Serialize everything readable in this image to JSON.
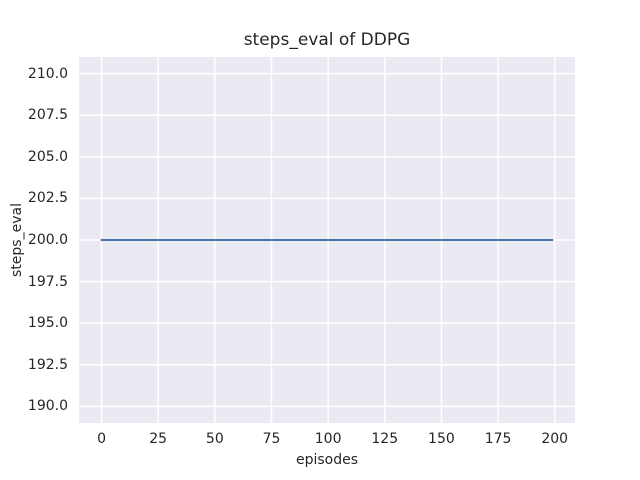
{
  "chart_data": {
    "type": "line",
    "title": "steps_eval of DDPG",
    "xlabel": "episodes",
    "ylabel": "steps_eval",
    "xlim": [
      -9.95,
      208.95
    ],
    "ylim": [
      189,
      211
    ],
    "xtick_values": [
      0,
      25,
      50,
      75,
      100,
      125,
      150,
      175,
      200
    ],
    "xtick_labels": [
      "0",
      "25",
      "50",
      "75",
      "100",
      "125",
      "150",
      "175",
      "200"
    ],
    "ytick_values": [
      190.0,
      192.5,
      195.0,
      197.5,
      200.0,
      202.5,
      205.0,
      207.5,
      210.0
    ],
    "ytick_labels": [
      "190.0",
      "192.5",
      "195.0",
      "197.5",
      "200.0",
      "202.5",
      "205.0",
      "207.5",
      "210.0"
    ],
    "grid": true,
    "legend": false,
    "series": [
      {
        "name": "steps_eval",
        "x": [
          0,
          199
        ],
        "y": [
          200,
          200
        ],
        "color": "#4C72B0"
      }
    ],
    "colors": {
      "figure_bg": "#FFFFFF",
      "plot_bg": "#EAEAF2",
      "grid": "#FFFFFF",
      "text": "#262626"
    }
  }
}
